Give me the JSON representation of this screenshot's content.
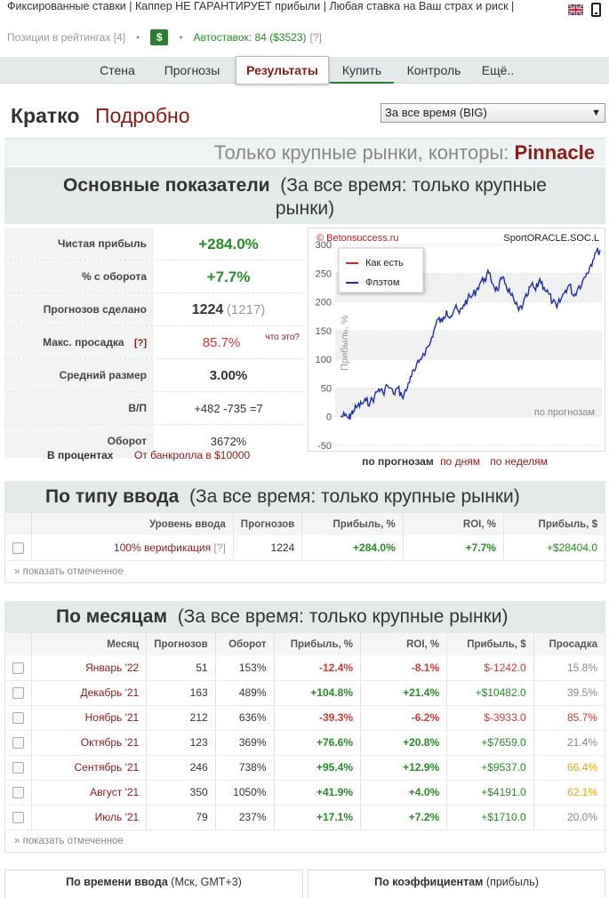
{
  "banner": {
    "text": "Фиксированные ставки | Каппер НЕ ГАРАНТИРУЕТ прибыли | Любая ставка на Ваш страх и риск |",
    "ratings_label": "Позиции в рейтингах [4]",
    "dollar": "$",
    "autobets": "Автоставок: 84 ($3523)",
    "autobets_hint": "[?]"
  },
  "nav": {
    "items": [
      {
        "label": "Стена"
      },
      {
        "label": "Прогнозы"
      },
      {
        "label": "Результаты"
      },
      {
        "label": "Купить"
      },
      {
        "label": "Контроль"
      },
      {
        "label": "Ещё.."
      }
    ]
  },
  "view": {
    "short": "Кратко",
    "detailed": "Подробно",
    "period": "За все время (BIG)",
    "arrow": "▼"
  },
  "markets": {
    "prefix": "Только крупные рынки, конторы:",
    "bookmaker": "Pinnacle"
  },
  "main": {
    "title": "Основные показатели",
    "subtitle": "(За все время: только крупные рынки)"
  },
  "stats": [
    {
      "label": "Чистая прибыль",
      "value": "+284.0%"
    },
    {
      "label": "% с оборота",
      "value": "+7.7%"
    },
    {
      "label": "Прогнозов сделано",
      "value": "1224",
      "extra": "(1217)"
    },
    {
      "label": "Макс. просадка",
      "hint": "[?]",
      "value": "85.7%",
      "note": "что это?"
    },
    {
      "label": "Средний размер",
      "value": "3.00%"
    },
    {
      "label": "В/П",
      "value": "+482 -735 =7"
    },
    {
      "label": "Оборот",
      "value": "3672%"
    }
  ],
  "stats_footer": {
    "percent": "В процентах",
    "bankroll": "От банкролла в $10000"
  },
  "chart_data": {
    "type": "line",
    "watermark_left": "© Betonsuccess.ru",
    "watermark_right": "SportORACLE.SOC.L",
    "ylabel": "Прибыль, %",
    "xlabel": "по прогнозам",
    "ylim": [
      -50,
      300
    ],
    "yticks": [
      300,
      250,
      200,
      150,
      100,
      50,
      0,
      -50
    ],
    "legend": [
      "Как есть",
      "Флэтом"
    ],
    "legend_position": "top-left",
    "series": [
      {
        "name": "Флэтом",
        "color": "#1f2fa8",
        "x": [
          0,
          20,
          40,
          50,
          60,
          80,
          100,
          120,
          140,
          160,
          180,
          200,
          220,
          250,
          270,
          290,
          310,
          330,
          350,
          370,
          390,
          420,
          440,
          460,
          480,
          500,
          520,
          540,
          560,
          580,
          600,
          620,
          640,
          660,
          680,
          700,
          720,
          740,
          760,
          780,
          800,
          820,
          840,
          860,
          880,
          900,
          920,
          940,
          960,
          980,
          1000,
          1020,
          1040,
          1060,
          1080,
          1100,
          1120,
          1140,
          1160,
          1180,
          1200,
          1224
        ],
        "values": [
          0,
          2,
          -3,
          5,
          10,
          18,
          22,
          28,
          25,
          35,
          48,
          42,
          55,
          40,
          50,
          35,
          45,
          70,
          80,
          95,
          110,
          125,
          150,
          170,
          165,
          185,
          175,
          190,
          180,
          195,
          205,
          210,
          220,
          235,
          240,
          250,
          230,
          220,
          240,
          230,
          215,
          200,
          185,
          195,
          210,
          230,
          220,
          240,
          225,
          215,
          200,
          190,
          205,
          220,
          230,
          210,
          225,
          235,
          250,
          265,
          285,
          290
        ]
      }
    ]
  },
  "chart_links": {
    "by_bets": "по прогнозам",
    "by_days": "по дням",
    "by_weeks": "по неделям"
  },
  "by_type": {
    "title": "По типу ввода",
    "subtitle": "(За все время: только крупные рынки)",
    "columns": [
      "Уровень ввода",
      "Прогнозов",
      "Прибыль, %",
      "ROI, %",
      "Прибыль, $"
    ],
    "rows": [
      {
        "level": "100% верификация",
        "hint": "[?]",
        "bets": "1224",
        "profit_pct": "+284.0%",
        "roi": "+7.7%",
        "profit_usd": "+$28404.0"
      }
    ],
    "show_marked": "» показать отмеченное"
  },
  "by_month": {
    "title": "По месяцам",
    "subtitle": "(За все время: только крупные рынки)",
    "columns": [
      "Месяц",
      "Прогнозов",
      "Оборот",
      "Прибыль, %",
      "ROI, %",
      "Прибыль, $",
      "Просадка"
    ],
    "rows": [
      {
        "month": "Январь '22",
        "bets": "51",
        "turnover": "153%",
        "profit_pct": "-12.4%",
        "roi": "-8.1%",
        "profit_usd": "$-1242.0",
        "drawdown": "15.8%",
        "sign": "neg",
        "dd": "gray"
      },
      {
        "month": "Декабрь '21",
        "bets": "163",
        "turnover": "489%",
        "profit_pct": "+104.8%",
        "roi": "+21.4%",
        "profit_usd": "+$10482.0",
        "drawdown": "39.5%",
        "sign": "pos",
        "dd": "gray"
      },
      {
        "month": "Ноябрь '21",
        "bets": "212",
        "turnover": "636%",
        "profit_pct": "-39.3%",
        "roi": "-6.2%",
        "profit_usd": "$-3933.0",
        "drawdown": "85.7%",
        "sign": "neg",
        "dd": "neg"
      },
      {
        "month": "Октябрь '21",
        "bets": "123",
        "turnover": "369%",
        "profit_pct": "+76.6%",
        "roi": "+20.8%",
        "profit_usd": "+$7659.0",
        "drawdown": "21.4%",
        "sign": "pos",
        "dd": "gray"
      },
      {
        "month": "Сентябрь '21",
        "bets": "246",
        "turnover": "738%",
        "profit_pct": "+95.4%",
        "roi": "+12.9%",
        "profit_usd": "+$9537.0",
        "drawdown": "66.4%",
        "sign": "pos",
        "dd": "orange"
      },
      {
        "month": "Август '21",
        "bets": "350",
        "turnover": "1050%",
        "profit_pct": "+41.9%",
        "roi": "+4.0%",
        "profit_usd": "+$4191.0",
        "drawdown": "62.1%",
        "sign": "pos",
        "dd": "orange"
      },
      {
        "month": "Июль '21",
        "bets": "79",
        "turnover": "237%",
        "profit_pct": "+17.1%",
        "roi": "+7.2%",
        "profit_usd": "+$1710.0",
        "drawdown": "20.0%",
        "sign": "pos",
        "dd": "gray"
      }
    ],
    "show_marked": "» показать отмеченное"
  },
  "bottom": {
    "left_title": "По времени ввода",
    "left_note": "(Мск, GMT+3)",
    "right_title": "По коэффициентам",
    "right_note": "(прибыль)"
  },
  "colors": {
    "accent": "#8b1a1a",
    "positive": "#2a8a2a",
    "negative": "#d43a3a",
    "warning": "#e6a800",
    "header_bg": "#e4eaea"
  }
}
